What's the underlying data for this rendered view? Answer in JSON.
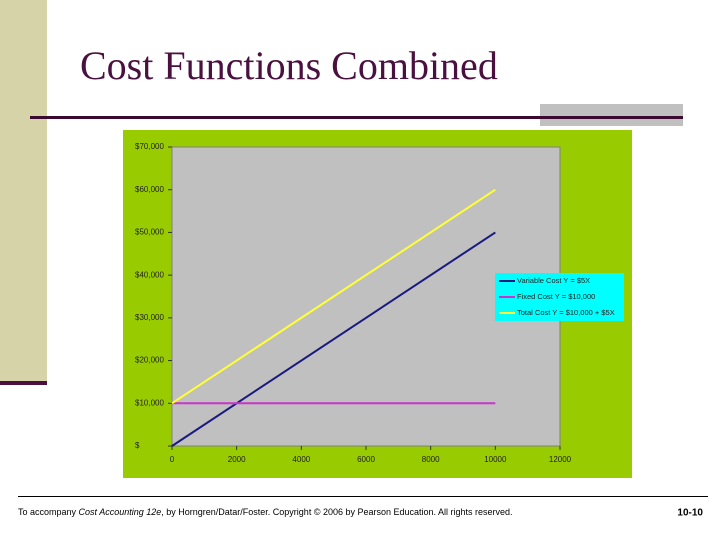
{
  "title": "Cost Functions Combined",
  "footer": {
    "before": "To accompany ",
    "book": "Cost Accounting 12e",
    "after": ", by Horngren/Datar/Foster. Copyright © 2006 by Pearson Education. All rights reserved.",
    "page": "10-10"
  },
  "chart_data": {
    "type": "line",
    "x": [
      0,
      10000
    ],
    "series": [
      {
        "name": "Variable Cost Y = $5X",
        "color": "#1a1a80",
        "values": [
          0,
          50000
        ]
      },
      {
        "name": "Fixed Cost Y = $10,000",
        "color": "#cc33cc",
        "values": [
          10000,
          10000
        ]
      },
      {
        "name": "Total Cost Y = $10,000 + $5X",
        "color": "#ffff33",
        "values": [
          10000,
          60000
        ]
      }
    ],
    "xlim": [
      0,
      12000
    ],
    "xticks": [
      0,
      2000,
      4000,
      6000,
      8000,
      10000,
      12000
    ],
    "ylim": [
      0,
      70000
    ],
    "yticks": [
      {
        "value": 0,
        "label": "$"
      },
      {
        "value": 10000,
        "label": "$10,000"
      },
      {
        "value": 20000,
        "label": "$20,000"
      },
      {
        "value": 30000,
        "label": "$30,000"
      },
      {
        "value": 40000,
        "label": "$40,000"
      },
      {
        "value": 50000,
        "label": "$50,000"
      },
      {
        "value": 60000,
        "label": "$60,000"
      },
      {
        "value": 70000,
        "label": "$70,000"
      }
    ],
    "legend": "right"
  }
}
